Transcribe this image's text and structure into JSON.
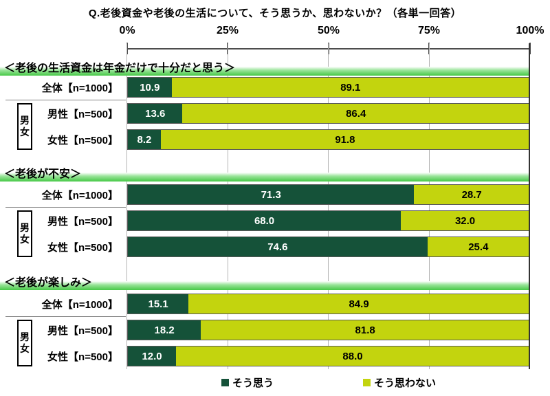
{
  "title": "Q.老後資金や老後の生活について、そう思うか、思わないか？（各単一回答）",
  "axis_ticks": [
    "0%",
    "25%",
    "50%",
    "75%",
    "100%"
  ],
  "group_box_label": "男女",
  "legend": {
    "agree_label": "そう思う",
    "disagree_label": "そう思わない"
  },
  "colors": {
    "agree_bar": "#155239",
    "disagree_bar": "#C3D40E",
    "heading_band_green": "#46C846",
    "grid_line": "#B3B3B3",
    "axis_line": "#4D4D4D",
    "end_line": "#333333"
  },
  "sections": [
    {
      "heading": "＜老後の生活資金は年金だけで十分だと思う＞",
      "rows": [
        {
          "label": "全体【n=1000】",
          "yes": "10.9",
          "no": "89.1"
        },
        {
          "label": "男性【n=500】",
          "yes": "13.6",
          "no": "86.4"
        },
        {
          "label": "女性【n=500】",
          "yes": "8.2",
          "no": "91.8"
        }
      ]
    },
    {
      "heading": "＜老後が不安＞",
      "rows": [
        {
          "label": "全体【n=1000】",
          "yes": "71.3",
          "no": "28.7"
        },
        {
          "label": "男性【n=500】",
          "yes": "68.0",
          "no": "32.0"
        },
        {
          "label": "女性【n=500】",
          "yes": "74.6",
          "no": "25.4"
        }
      ]
    },
    {
      "heading": "＜老後が楽しみ＞",
      "rows": [
        {
          "label": "全体【n=1000】",
          "yes": "15.1",
          "no": "84.9"
        },
        {
          "label": "男性【n=500】",
          "yes": "18.2",
          "no": "81.8"
        },
        {
          "label": "女性【n=500】",
          "yes": "12.0",
          "no": "88.0"
        }
      ]
    }
  ],
  "chart_data": {
    "type": "bar",
    "subtype": "horizontal-stacked",
    "title": "Q.老後資金や老後の生活について、そう思うか、思わないか？（各単一回答）",
    "x_axis": {
      "range": [
        0,
        100
      ],
      "tick_labels": [
        "0%",
        "25%",
        "50%",
        "75%",
        "100%"
      ],
      "unit": "%"
    },
    "legend_entries": [
      "そう思う",
      "そう思わない"
    ],
    "legend_position": "bottom",
    "grid": true,
    "groups": [
      {
        "heading": "＜老後の生活資金は年金だけで十分だと思う＞",
        "categories": [
          "全体【n=1000】",
          "男性【n=500】",
          "女性【n=500】"
        ],
        "series": [
          {
            "name": "そう思う",
            "color": "#155239",
            "values": [
              10.9,
              13.6,
              8.2
            ]
          },
          {
            "name": "そう思わない",
            "color": "#C3D40E",
            "values": [
              89.1,
              86.4,
              91.8
            ]
          }
        ]
      },
      {
        "heading": "＜老後が不安＞",
        "categories": [
          "全体【n=1000】",
          "男性【n=500】",
          "女性【n=500】"
        ],
        "series": [
          {
            "name": "そう思う",
            "color": "#155239",
            "values": [
              71.3,
              68.0,
              74.6
            ]
          },
          {
            "name": "そう思わない",
            "color": "#C3D40E",
            "values": [
              28.7,
              32.0,
              25.4
            ]
          }
        ]
      },
      {
        "heading": "＜老後が楽しみ＞",
        "categories": [
          "全体【n=1000】",
          "男性【n=500】",
          "女性【n=500】"
        ],
        "series": [
          {
            "name": "そう思う",
            "color": "#155239",
            "values": [
              15.1,
              18.2,
              12.0
            ]
          },
          {
            "name": "そう思わない",
            "color": "#C3D40E",
            "values": [
              84.9,
              81.8,
              88.0
            ]
          }
        ]
      }
    ]
  }
}
